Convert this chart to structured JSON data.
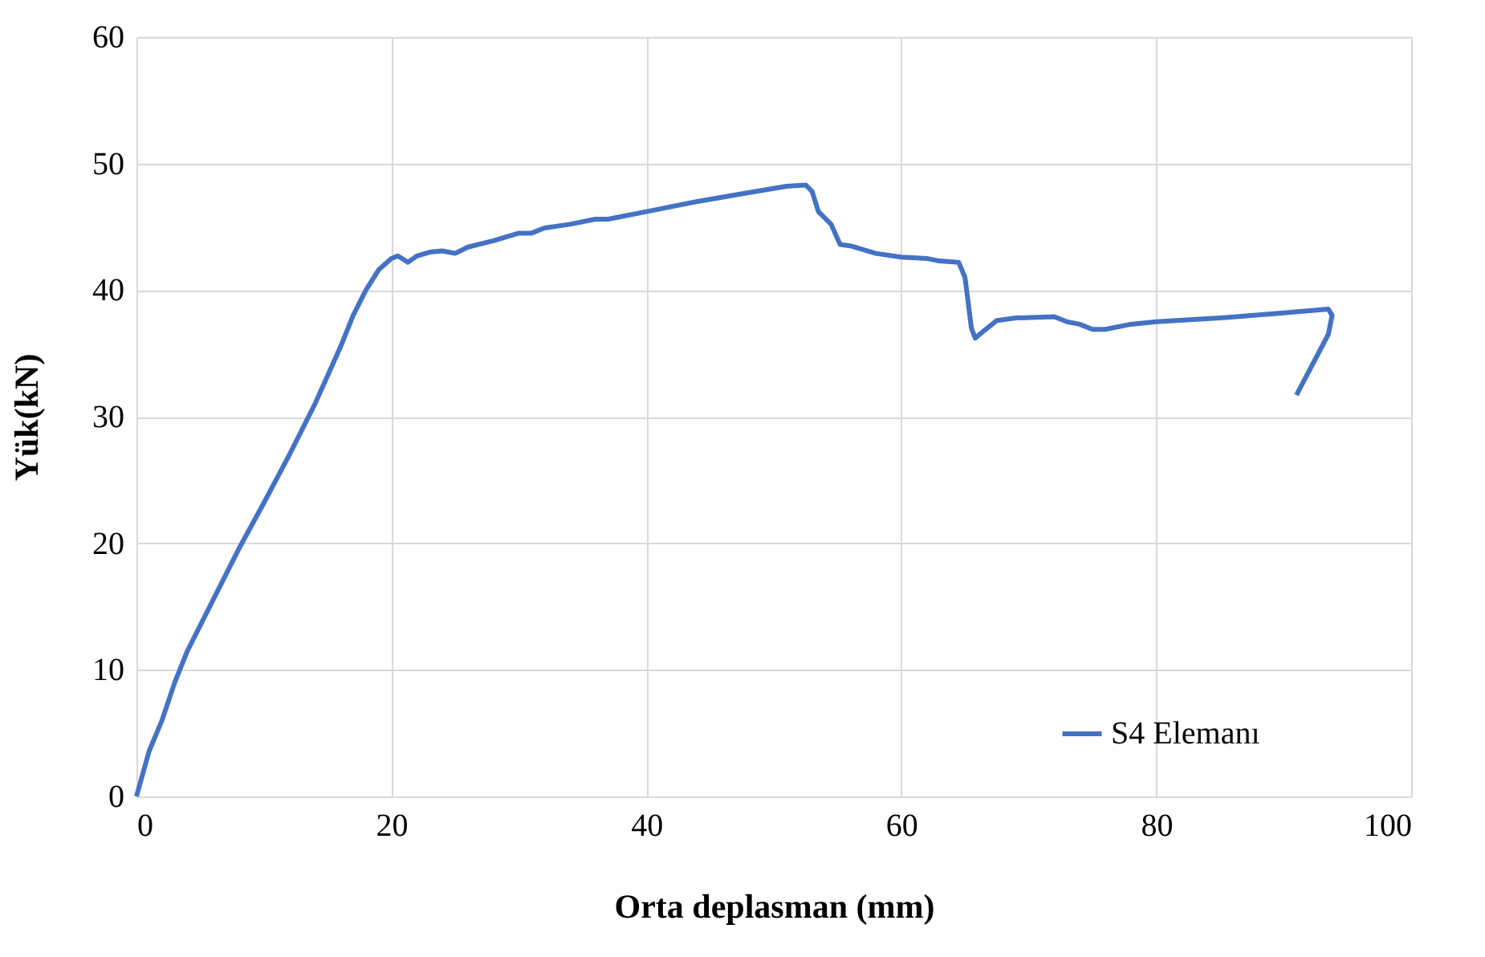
{
  "chart_data": {
    "type": "line",
    "xlabel": "Orta deplasman (mm)",
    "ylabel": "Yük(kN)",
    "xlim": [
      0,
      100
    ],
    "xticks": [
      0,
      20,
      40,
      60,
      80,
      100
    ],
    "ylim": [
      0,
      60
    ],
    "yticks": [
      0,
      10,
      20,
      30,
      40,
      50,
      60
    ],
    "grid": true,
    "legend": "bottom right",
    "marker": "none",
    "line_style": "solid",
    "x": [
      0,
      1,
      2,
      3,
      4,
      6,
      8,
      10,
      12,
      14,
      16,
      17,
      18,
      19,
      20,
      20.5,
      21.3,
      22,
      23,
      24,
      25,
      26,
      28,
      30,
      31,
      32,
      34,
      36,
      37,
      40,
      44,
      48,
      51,
      52.5,
      53,
      53.5,
      54.5,
      55.2,
      56,
      58,
      60,
      62,
      63,
      64.5,
      65,
      65.5,
      65.8,
      66.5,
      67.5,
      69,
      72,
      73,
      74,
      75,
      76,
      78,
      80,
      85,
      90,
      93.5,
      93.8,
      93.5,
      91
    ],
    "series": [
      {
        "name": "S4 Elemanı",
        "color": "#4472c4",
        "values": [
          0,
          3.6,
          6,
          9,
          11.5,
          15.5,
          19.5,
          23.2,
          27,
          31,
          35.5,
          38,
          40,
          41.6,
          42.5,
          42.7,
          42.2,
          42.7,
          43,
          43.1,
          42.9,
          43.4,
          43.9,
          44.5,
          44.5,
          44.9,
          45.2,
          45.6,
          45.6,
          46.2,
          47,
          47.7,
          48.2,
          48.3,
          47.8,
          46.2,
          45.2,
          43.6,
          43.5,
          42.9,
          42.6,
          42.5,
          42.3,
          42.2,
          41,
          37,
          36.2,
          36.8,
          37.6,
          37.8,
          37.9,
          37.5,
          37.3,
          36.9,
          36.9,
          37.3,
          37.5,
          37.8,
          38.2,
          38.5,
          38,
          36.5,
          31.7
        ]
      }
    ]
  }
}
